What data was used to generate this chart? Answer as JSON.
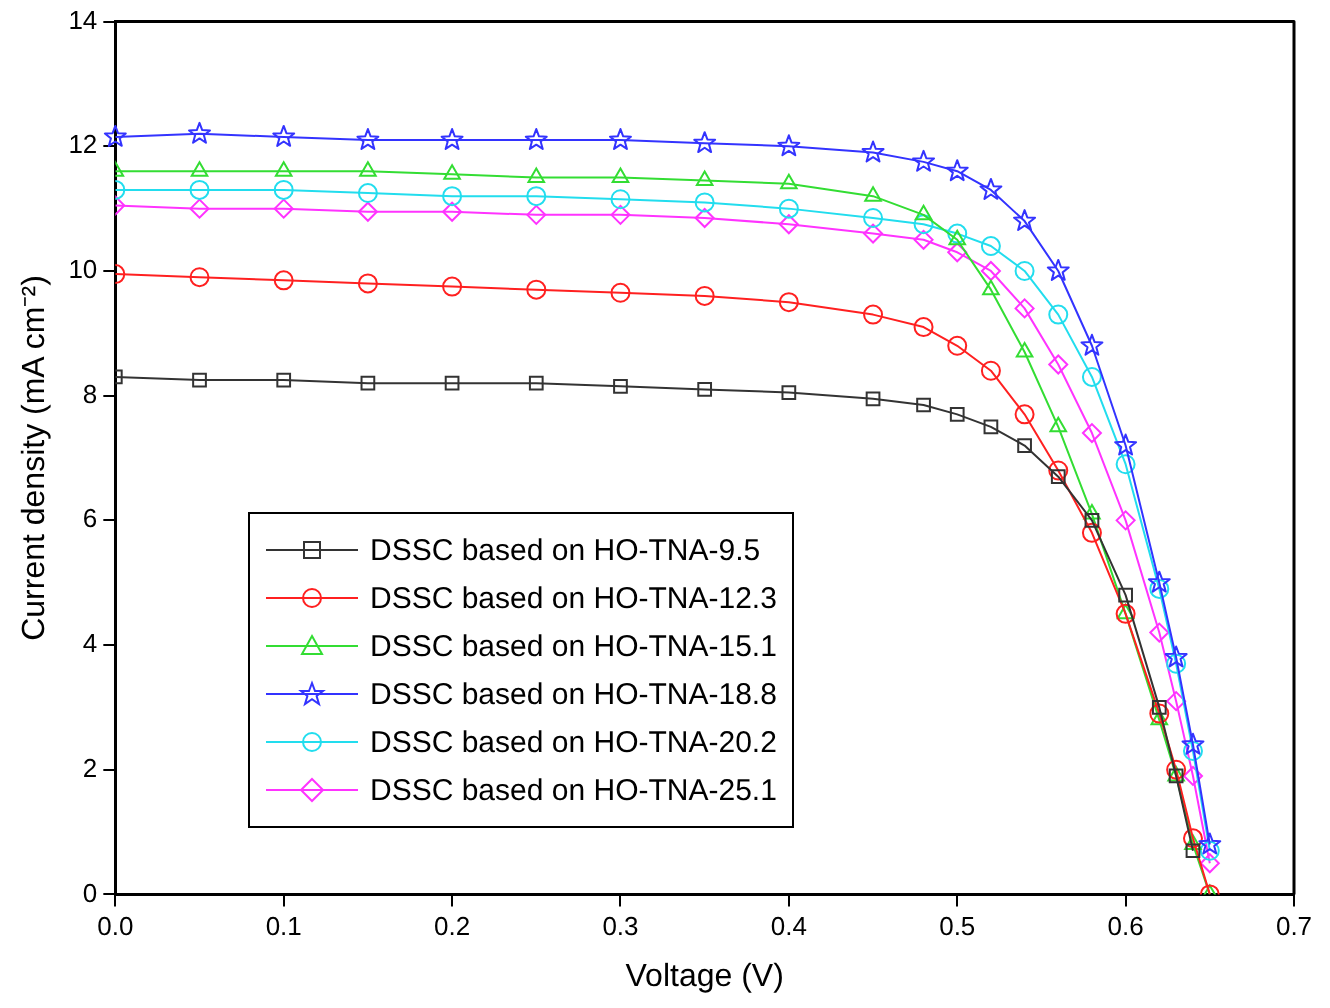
{
  "chart_data": {
    "type": "line",
    "xlabel": "Voltage (V)",
    "ylabel": "Current density (mA cm⁻²)",
    "xlim": [
      0,
      0.7
    ],
    "xticks": [
      {
        "value": 0,
        "label": "0.0"
      },
      {
        "value": 0.1,
        "label": "0.1"
      },
      {
        "value": 0.2,
        "label": "0.2"
      },
      {
        "value": 0.3,
        "label": "0.3"
      },
      {
        "value": 0.4,
        "label": "0.4"
      },
      {
        "value": 0.5,
        "label": "0.5"
      },
      {
        "value": 0.6,
        "label": "0.6"
      },
      {
        "value": 0.7,
        "label": "0.7"
      }
    ],
    "ylim": [
      0,
      14
    ],
    "yticks": [
      0,
      2,
      4,
      6,
      8,
      10,
      12,
      14
    ],
    "grid": false,
    "legend": "bottom left",
    "line_style": "solid",
    "x": [
      0,
      0.05,
      0.1,
      0.15,
      0.2,
      0.25,
      0.3,
      0.35,
      0.4,
      0.45,
      0.48,
      0.5,
      0.52,
      0.54,
      0.56,
      0.58,
      0.6,
      0.62,
      0.63,
      0.64,
      0.65
    ],
    "series": [
      {
        "name": "DSSC based on HO-TNA-9.5",
        "color": "#333333",
        "marker": "square",
        "values": [
          8.3,
          8.25,
          8.25,
          8.2,
          8.2,
          8.2,
          8.15,
          8.1,
          8.05,
          7.95,
          7.85,
          7.7,
          7.5,
          7.2,
          6.7,
          6.0,
          4.8,
          3.0,
          1.9,
          0.7,
          null
        ]
      },
      {
        "name": "DSSC based on HO-TNA-12.3",
        "color": "#ff2020",
        "marker": "circle",
        "values": [
          9.95,
          9.9,
          9.85,
          9.8,
          9.75,
          9.7,
          9.65,
          9.6,
          9.5,
          9.3,
          9.1,
          8.8,
          8.4,
          7.7,
          6.8,
          5.8,
          4.5,
          2.9,
          2.0,
          0.9,
          0
        ]
      },
      {
        "name": "DSSC based on HO-TNA-15.1",
        "color": "#33dd33",
        "marker": "triangle",
        "values": [
          11.6,
          11.6,
          11.6,
          11.6,
          11.55,
          11.5,
          11.5,
          11.45,
          11.4,
          11.2,
          10.9,
          10.5,
          9.7,
          8.7,
          7.5,
          6.1,
          4.5,
          2.8,
          1.9,
          0.8,
          0
        ]
      },
      {
        "name": "DSSC based on HO-TNA-18.8",
        "color": "#3333ff",
        "marker": "star",
        "values": [
          12.15,
          12.2,
          12.15,
          12.1,
          12.1,
          12.1,
          12.1,
          12.05,
          12.0,
          11.9,
          11.75,
          11.6,
          11.3,
          10.8,
          10.0,
          8.8,
          7.2,
          5.0,
          3.8,
          2.4,
          0.8
        ]
      },
      {
        "name": "DSSC based on HO-TNA-20.2",
        "color": "#22ddee",
        "marker": "circle",
        "values": [
          11.3,
          11.3,
          11.3,
          11.25,
          11.2,
          11.2,
          11.15,
          11.1,
          11.0,
          10.85,
          10.75,
          10.6,
          10.4,
          10.0,
          9.3,
          8.3,
          6.9,
          4.9,
          3.7,
          2.3,
          0.7
        ]
      },
      {
        "name": "DSSC based on HO-TNA-25.1",
        "color": "#ff33ff",
        "marker": "diamond",
        "values": [
          11.05,
          11.0,
          11.0,
          10.95,
          10.95,
          10.9,
          10.9,
          10.85,
          10.75,
          10.6,
          10.5,
          10.3,
          10.0,
          9.4,
          8.5,
          7.4,
          6.0,
          4.2,
          3.1,
          1.9,
          0.5
        ]
      }
    ]
  }
}
